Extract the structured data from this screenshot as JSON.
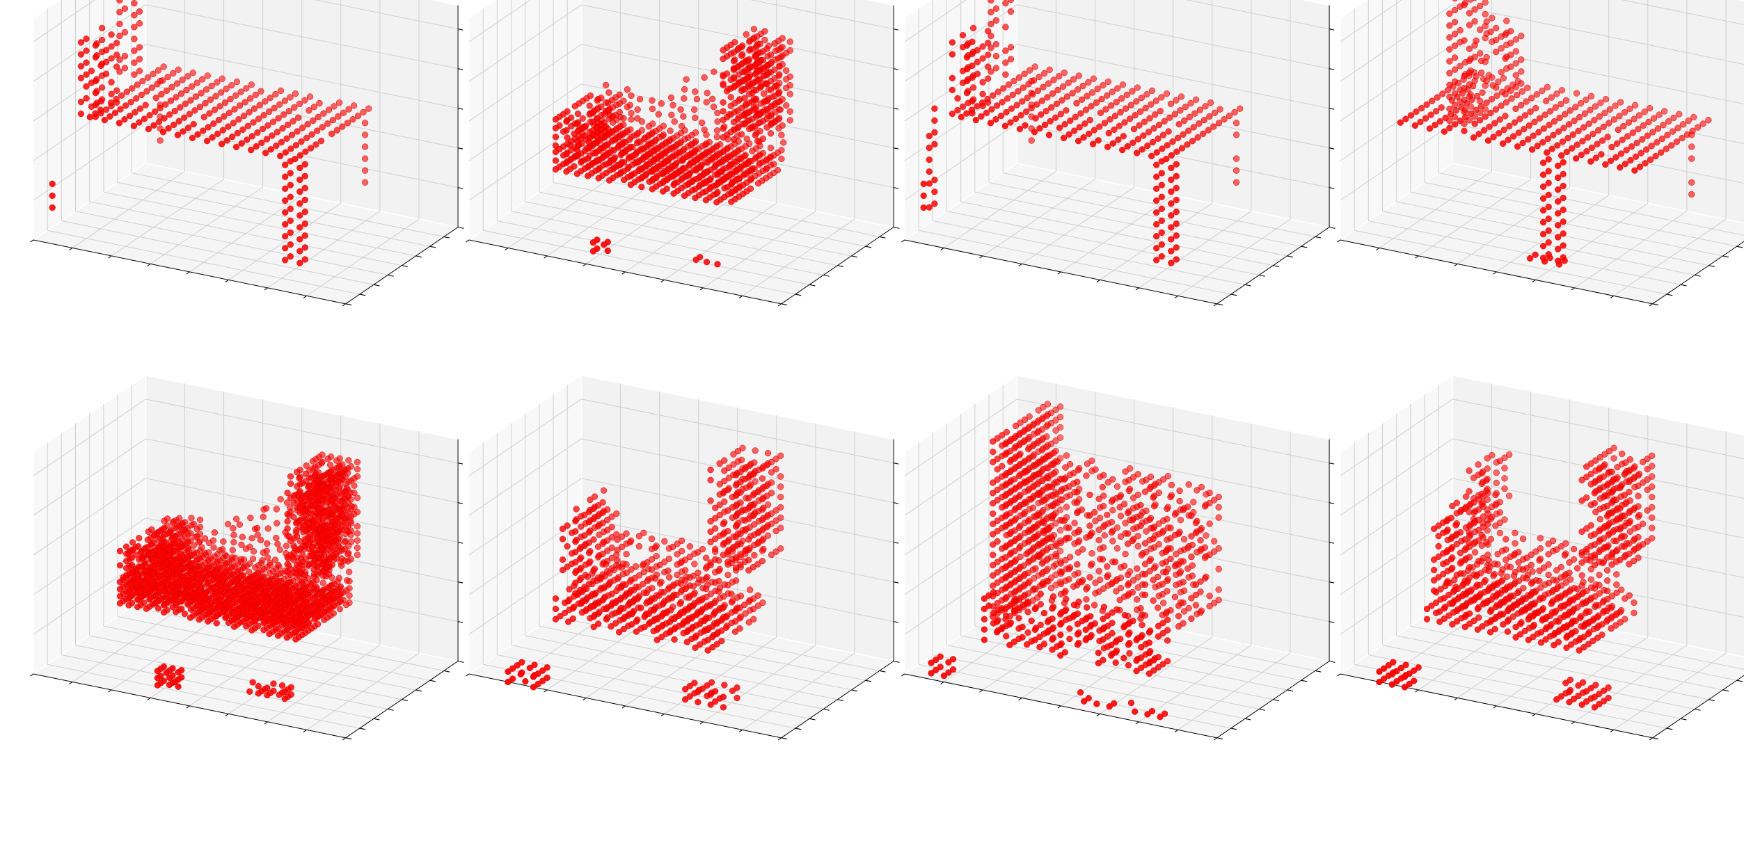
{
  "figure": {
    "background": "#ffffff",
    "point_color": "#ff0000",
    "rows": 2,
    "cols": 4
  },
  "chart_data": [
    {
      "type": "scatter",
      "subtype": "3d-voxel",
      "shape": "desk",
      "z_ticks": [
        "5",
        "10",
        "15",
        "20",
        "25"
      ],
      "zlim": [
        1,
        28
      ],
      "xlim": [
        0,
        32
      ],
      "ylim": [
        0,
        32
      ],
      "grid": true,
      "color": "#ff0000",
      "point_count": 280
    },
    {
      "type": "scatter",
      "subtype": "3d-voxel",
      "shape": "sofa",
      "z_ticks": [
        "5",
        "10",
        "15",
        "20",
        "25"
      ],
      "zlim": [
        1,
        28
      ],
      "xlim": [
        0,
        32
      ],
      "ylim": [
        0,
        32
      ],
      "grid": true,
      "color": "#ff0000",
      "point_count": 580
    },
    {
      "type": "scatter",
      "subtype": "3d-voxel",
      "shape": "desk",
      "z_ticks": [
        "5",
        "10",
        "15",
        "20",
        "25"
      ],
      "zlim": [
        1,
        28
      ],
      "xlim": [
        0,
        32
      ],
      "ylim": [
        0,
        32
      ],
      "grid": true,
      "color": "#ff0000",
      "point_count": 300
    },
    {
      "type": "scatter",
      "subtype": "3d-voxel",
      "shape": "table",
      "z_ticks": [
        "5",
        "10",
        "15",
        "20",
        "25"
      ],
      "zlim": [
        1,
        28
      ],
      "xlim": [
        0,
        32
      ],
      "ylim": [
        0,
        32
      ],
      "grid": true,
      "color": "#ff0000",
      "point_count": 420
    },
    {
      "type": "scatter",
      "subtype": "3d-voxel",
      "shape": "sofa",
      "z_ticks": [
        "5",
        "10",
        "15",
        "20",
        "25"
      ],
      "zlim": [
        1,
        28
      ],
      "xlim": [
        0,
        32
      ],
      "ylim": [
        0,
        32
      ],
      "grid": true,
      "color": "#ff0000",
      "point_count": 700
    },
    {
      "type": "scatter",
      "subtype": "3d-voxel",
      "shape": "armchair",
      "z_ticks": [
        "5",
        "10",
        "15",
        "20",
        "25"
      ],
      "zlim": [
        1,
        28
      ],
      "xlim": [
        0,
        32
      ],
      "ylim": [
        0,
        32
      ],
      "grid": true,
      "color": "#ff0000",
      "point_count": 520
    },
    {
      "type": "scatter",
      "subtype": "3d-voxel",
      "shape": "wall-with-bench",
      "z_ticks": [
        "5",
        "10",
        "15",
        "20",
        "25"
      ],
      "zlim": [
        1,
        28
      ],
      "xlim": [
        0,
        32
      ],
      "ylim": [
        0,
        32
      ],
      "grid": true,
      "color": "#ff0000",
      "point_count": 480
    },
    {
      "type": "scatter",
      "subtype": "3d-voxel",
      "shape": "armchair",
      "z_ticks": [
        "5",
        "10",
        "15",
        "20",
        "25"
      ],
      "zlim": [
        1,
        28
      ],
      "xlim": [
        0,
        32
      ],
      "ylim": [
        0,
        32
      ],
      "grid": true,
      "color": "#ff0000",
      "point_count": 500
    }
  ]
}
